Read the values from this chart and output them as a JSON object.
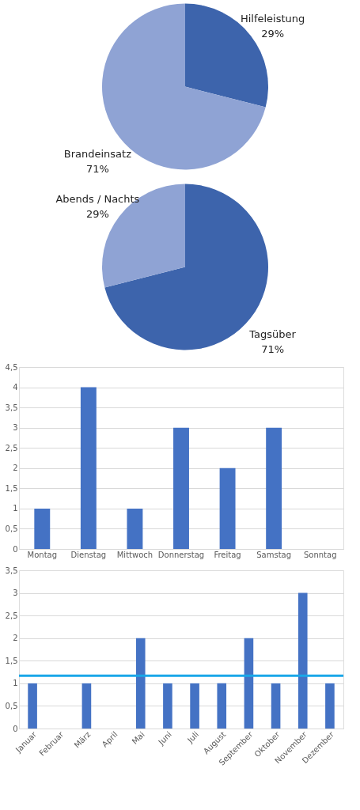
{
  "chart_data": [
    {
      "type": "pie",
      "categories": [
        "Hilfeleistung",
        "Brandeinsatz"
      ],
      "values": [
        29,
        71
      ],
      "colors": [
        "#3d64ac",
        "#8fa3d4"
      ],
      "value_labels": [
        "29%",
        "71%"
      ],
      "legend": false
    },
    {
      "type": "pie",
      "categories": [
        "Tagsüber",
        "Abends / Nachts"
      ],
      "values": [
        71,
        29
      ],
      "colors": [
        "#3260b0",
        "#8b9fd4"
      ],
      "value_labels": [
        "71%",
        "29%"
      ],
      "legend": false
    },
    {
      "type": "bar",
      "categories": [
        "Montag",
        "Dienstag",
        "Mittwoch",
        "Donnerstag",
        "Freitag",
        "Samstag",
        "Sonntag"
      ],
      "values": [
        1,
        4,
        1,
        3,
        2,
        3,
        0
      ],
      "color": "#4472c4",
      "ylim": [
        0,
        4.5
      ],
      "yticks": [
        0,
        {
          "value": 0.5,
          "label": "0,5"
        },
        1,
        {
          "value": 1.5,
          "label": "1,5"
        },
        2,
        {
          "value": 2.5,
          "label": "2,5"
        },
        3,
        {
          "value": 3.5,
          "label": "3,5"
        },
        4,
        {
          "value": 4.5,
          "label": "4,5"
        }
      ],
      "grid": "y"
    },
    {
      "type": "bar",
      "categories": [
        "Januar",
        "Februar",
        "März",
        "April",
        "Mai",
        "Juni",
        "Juli",
        "August",
        "September",
        "Oktober",
        "November",
        "Dezember"
      ],
      "values": [
        1,
        0,
        1,
        0,
        2,
        1,
        1,
        1,
        2,
        1,
        3,
        1
      ],
      "color": "#4472c4",
      "ylim": [
        0,
        3.5
      ],
      "yticks": [
        0,
        {
          "value": 0.5,
          "label": "0,5"
        },
        1,
        {
          "value": 1.5,
          "label": "1,5"
        },
        2,
        {
          "value": 2.5,
          "label": "2,5"
        },
        3,
        {
          "value": 3.5,
          "label": "3,5"
        }
      ],
      "grid": "y",
      "ref_lines": [
        {
          "axis": "y",
          "value": 1.17,
          "color": "#1aa7e8"
        }
      ]
    }
  ]
}
